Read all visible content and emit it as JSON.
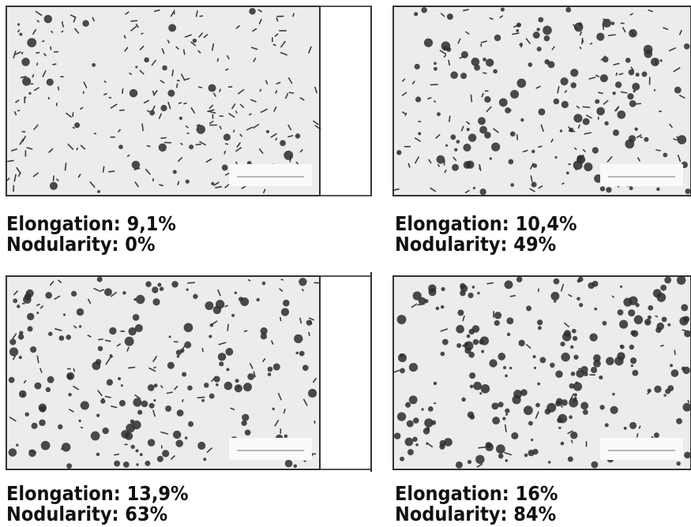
{
  "panels": [
    {
      "elongation": "Elongation: 9,1%",
      "nodularity": "Nodularity: 0%"
    },
    {
      "elongation": "Elongation: 10,4%",
      "nodularity": "Nodularity: 49%"
    },
    {
      "elongation": "Elongation: 13,9%",
      "nodularity": "Nodularity: 63%"
    },
    {
      "elongation": "Elongation: 16%",
      "nodularity": "Nodularity: 84%"
    }
  ]
}
